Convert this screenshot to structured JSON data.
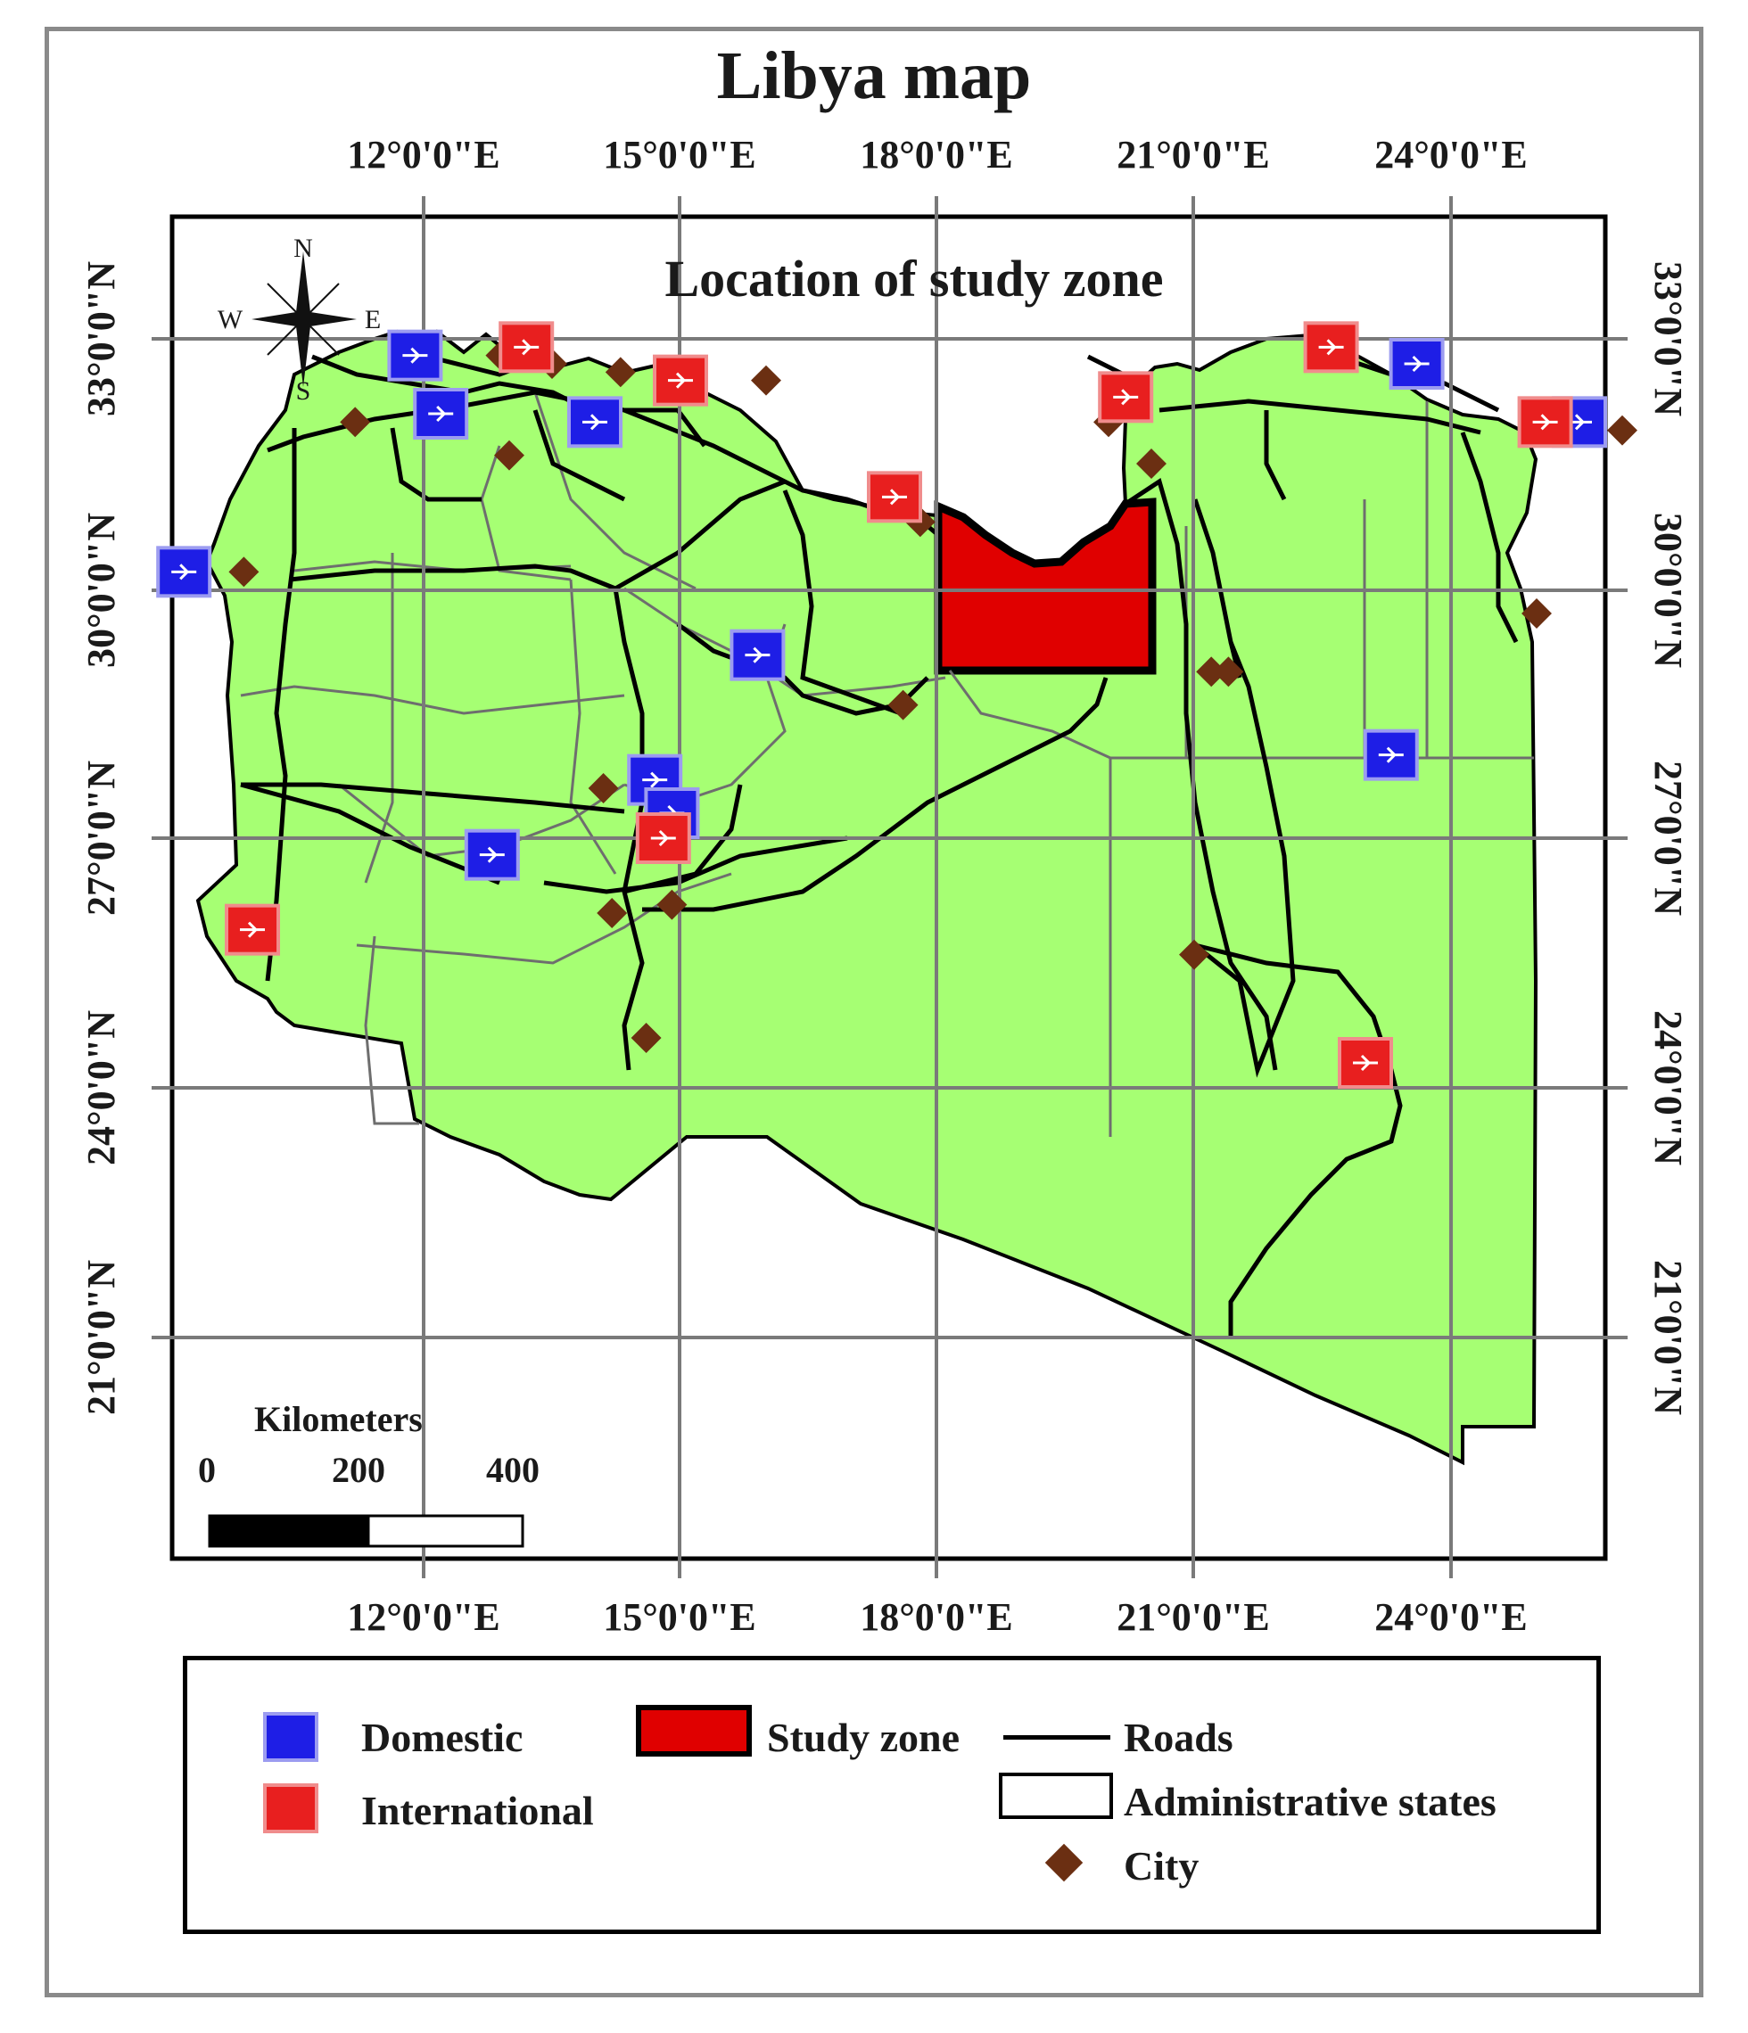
{
  "title": "Libya map",
  "subtitle": "Location of study zone",
  "compass": {
    "n": "N",
    "s": "S",
    "e": "E",
    "w": "W"
  },
  "longitude_labels": [
    "12°0'0\"E",
    "15°0'0\"E",
    "18°0'0\"E",
    "21°0'0\"E",
    "24°0'0\"E"
  ],
  "latitude_labels": [
    "33°0'0\"N",
    "30°0'0\"N",
    "27°0'0\"N",
    "24°0'0\"N",
    "21°0'0\"N"
  ],
  "scale_bar": {
    "title": "Kilometers",
    "ticks": [
      "0",
      "200",
      "400"
    ]
  },
  "legend": {
    "domestic": "Domestic",
    "international": "International",
    "study_zone": "Study zone",
    "roads": "Roads",
    "admin": "Administrative states",
    "city": "City"
  },
  "colors": {
    "land": "#a6ff73",
    "study_zone": "#e00000",
    "domestic_airport": "#1e1ee6",
    "international_airport": "#e81f1f",
    "city": "#6b2f12",
    "grid": "#7a7a7a",
    "roads": "#000000",
    "admin_boundaries": "#6e6e6e"
  },
  "map_data": {
    "type": "map",
    "grid_longitudes_deg_e": [
      12,
      15,
      18,
      21,
      24
    ],
    "grid_latitudes_deg_n": [
      33,
      30,
      27,
      24,
      21
    ],
    "domestic_airports": [
      [
        11.9,
        32.8
      ],
      [
        12.2,
        32.1
      ],
      [
        14.0,
        32.0
      ],
      [
        15.9,
        29.2
      ],
      [
        14.7,
        27.7
      ],
      [
        14.9,
        27.3
      ],
      [
        12.8,
        26.8
      ],
      [
        23.3,
        28.0
      ],
      [
        23.6,
        32.7
      ],
      [
        25.5,
        32.0
      ],
      [
        9.2,
        30.2
      ]
    ],
    "international_airports": [
      [
        13.2,
        32.9
      ],
      [
        15.0,
        32.5
      ],
      [
        17.5,
        31.1
      ],
      [
        20.2,
        32.3
      ],
      [
        22.6,
        32.9
      ],
      [
        25.1,
        32.0
      ],
      [
        10.0,
        25.9
      ],
      [
        14.8,
        27.0
      ],
      [
        23.0,
        24.3
      ]
    ],
    "cities": [
      [
        12.9,
        32.8
      ],
      [
        13.5,
        32.7
      ],
      [
        14.3,
        32.6
      ],
      [
        11.2,
        32.0
      ],
      [
        13.0,
        31.6
      ],
      [
        9.9,
        30.2
      ],
      [
        17.8,
        30.8
      ],
      [
        17.6,
        28.6
      ],
      [
        21.2,
        29.0
      ],
      [
        21.4,
        29.0
      ],
      [
        20.0,
        32.0
      ],
      [
        20.5,
        31.5
      ],
      [
        25.0,
        29.7
      ],
      [
        14.1,
        27.6
      ],
      [
        14.2,
        26.1
      ],
      [
        14.9,
        26.2
      ],
      [
        14.6,
        24.6
      ],
      [
        21.0,
        25.6
      ],
      [
        26.0,
        31.9
      ],
      [
        22.6,
        32.9
      ],
      [
        16.0,
        32.5
      ]
    ]
  }
}
